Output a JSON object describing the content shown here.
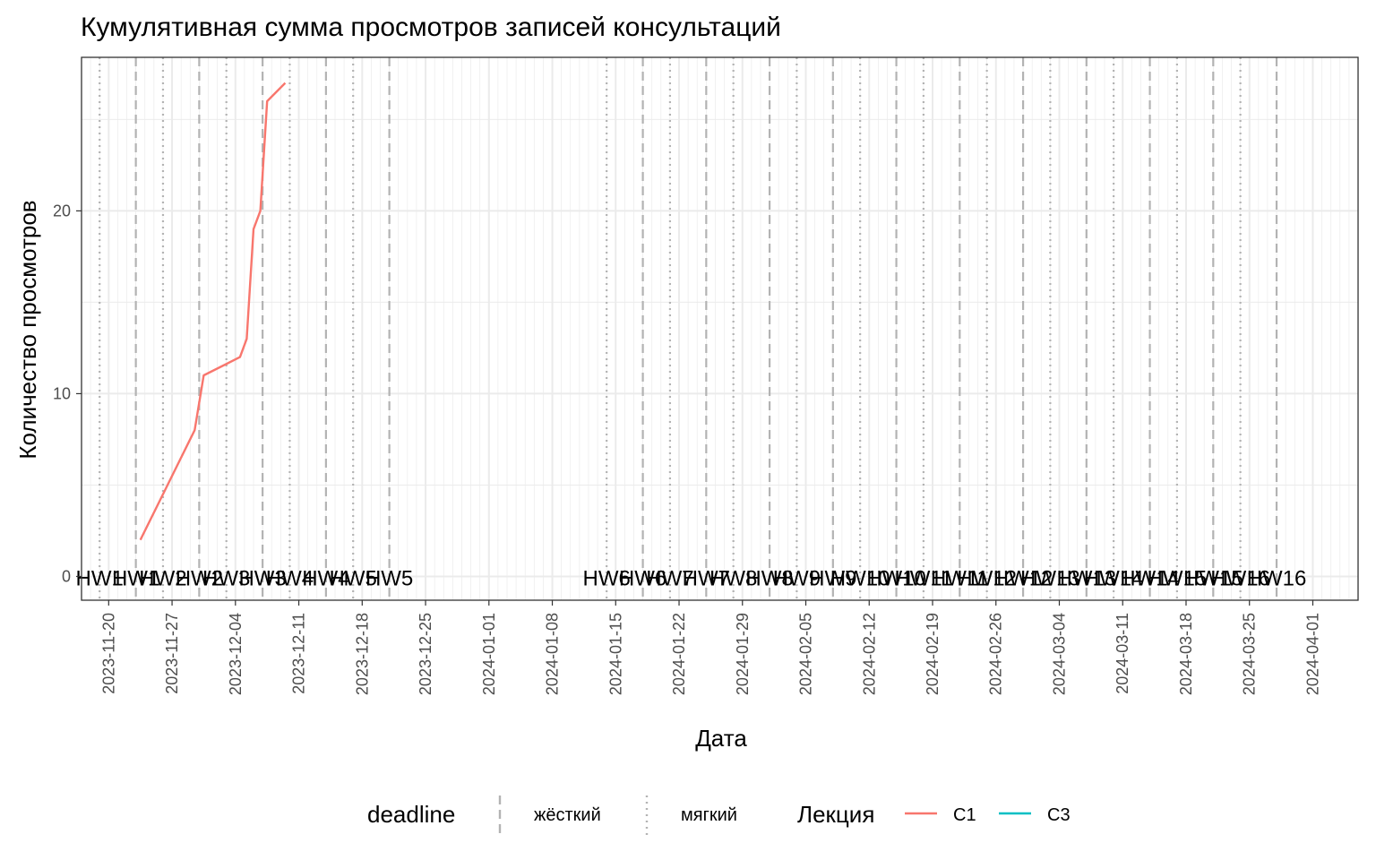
{
  "chart_data": {
    "type": "line",
    "title": "Кумулятивная сумма просмотров записей консультаций",
    "xlabel": "Дата",
    "ylabel": "Количество просмотров",
    "x_is_date": true,
    "xlim": [
      "2023-11-17",
      "2024-04-06"
    ],
    "ylim": [
      -1.3,
      28.4
    ],
    "y_ticks": [
      0,
      10,
      20
    ],
    "y_minor": [
      5,
      15,
      25
    ],
    "x_ticks": [
      "2023-11-20",
      "2023-11-27",
      "2023-12-04",
      "2023-12-11",
      "2023-12-18",
      "2023-12-25",
      "2024-01-01",
      "2024-01-08",
      "2024-01-15",
      "2024-01-22",
      "2024-01-29",
      "2024-02-05",
      "2024-02-12",
      "2024-02-19",
      "2024-02-26",
      "2024-03-04",
      "2024-03-11",
      "2024-03-18",
      "2024-03-25",
      "2024-04-01"
    ],
    "grid": true,
    "series": [
      {
        "name": "С1",
        "color": "#f8766d",
        "points": [
          {
            "x": "2023-11-23T12:00",
            "y": 2
          },
          {
            "x": "2023-11-26T12:00",
            "y": 5
          },
          {
            "x": "2023-11-29T12:00",
            "y": 8
          },
          {
            "x": "2023-11-30T12:00",
            "y": 11
          },
          {
            "x": "2023-12-04T12:00",
            "y": 12
          },
          {
            "x": "2023-12-05T06:00",
            "y": 13
          },
          {
            "x": "2023-12-06T00:00",
            "y": 19
          },
          {
            "x": "2023-12-06T18:00",
            "y": 20
          },
          {
            "x": "2023-12-07T12:00",
            "y": 26
          },
          {
            "x": "2023-12-09T12:00",
            "y": 27
          }
        ]
      },
      {
        "name": "С3",
        "color": "#00bfc4",
        "points": []
      }
    ],
    "deadlines": [
      {
        "label": "HW1",
        "date": "2023-11-19",
        "kind": "мягкий"
      },
      {
        "label": "HW1",
        "date": "2023-11-23",
        "kind": "жёсткий"
      },
      {
        "label": "HW2",
        "date": "2023-11-26",
        "kind": "мягкий"
      },
      {
        "label": "HW2",
        "date": "2023-11-30",
        "kind": "жёсткий"
      },
      {
        "label": "HW3",
        "date": "2023-12-03",
        "kind": "мягкий"
      },
      {
        "label": "HW3",
        "date": "2023-12-07",
        "kind": "жёсткий"
      },
      {
        "label": "HW4",
        "date": "2023-12-10",
        "kind": "мягкий"
      },
      {
        "label": "HW4",
        "date": "2023-12-14",
        "kind": "жёсткий"
      },
      {
        "label": "HW5",
        "date": "2023-12-17",
        "kind": "мягкий"
      },
      {
        "label": "HW5",
        "date": "2023-12-21",
        "kind": "жёсткий"
      },
      {
        "label": "HW6",
        "date": "2024-01-14",
        "kind": "мягкий"
      },
      {
        "label": "HW6",
        "date": "2024-01-18",
        "kind": "жёсткий"
      },
      {
        "label": "HW7",
        "date": "2024-01-21",
        "kind": "мягкий"
      },
      {
        "label": "HW7",
        "date": "2024-01-25",
        "kind": "жёсткий"
      },
      {
        "label": "HW8",
        "date": "2024-01-28",
        "kind": "мягкий"
      },
      {
        "label": "HW8",
        "date": "2024-02-01",
        "kind": "жёсткий"
      },
      {
        "label": "HW9",
        "date": "2024-02-04",
        "kind": "мягкий"
      },
      {
        "label": "HW9",
        "date": "2024-02-08",
        "kind": "жёсткий"
      },
      {
        "label": "HW10",
        "date": "2024-02-11",
        "kind": "мягкий"
      },
      {
        "label": "HW10",
        "date": "2024-02-15",
        "kind": "жёсткий"
      },
      {
        "label": "HW11",
        "date": "2024-02-18",
        "kind": "мягкий"
      },
      {
        "label": "HW11",
        "date": "2024-02-22",
        "kind": "жёсткий"
      },
      {
        "label": "HW12",
        "date": "2024-02-25",
        "kind": "мягкий"
      },
      {
        "label": "HW12",
        "date": "2024-02-29",
        "kind": "жёсткий"
      },
      {
        "label": "HW13",
        "date": "2024-03-03",
        "kind": "мягкий"
      },
      {
        "label": "HW13",
        "date": "2024-03-07",
        "kind": "жёсткий"
      },
      {
        "label": "HW14",
        "date": "2024-03-10",
        "kind": "мягкий"
      },
      {
        "label": "HW14",
        "date": "2024-03-14",
        "kind": "жёсткий"
      },
      {
        "label": "HW15",
        "date": "2024-03-17",
        "kind": "мягкий"
      },
      {
        "label": "HW15",
        "date": "2024-03-21",
        "kind": "жёсткий"
      },
      {
        "label": "HW16",
        "date": "2024-03-24",
        "kind": "мягкий"
      },
      {
        "label": "HW16",
        "date": "2024-03-28",
        "kind": "жёсткий"
      }
    ],
    "legend": {
      "deadline_title": "deadline",
      "deadline_items": [
        {
          "label": "жёсткий",
          "kind": "жёсткий"
        },
        {
          "label": "мягкий",
          "kind": "мягкий"
        }
      ],
      "series_title": "Лекция",
      "placement": "bottom"
    },
    "colors": {
      "grid": "#ebebeb",
      "panel_border": "#333333",
      "deadline_line": "#b3b3b3",
      "tick_text": "#4d4d4d"
    }
  }
}
